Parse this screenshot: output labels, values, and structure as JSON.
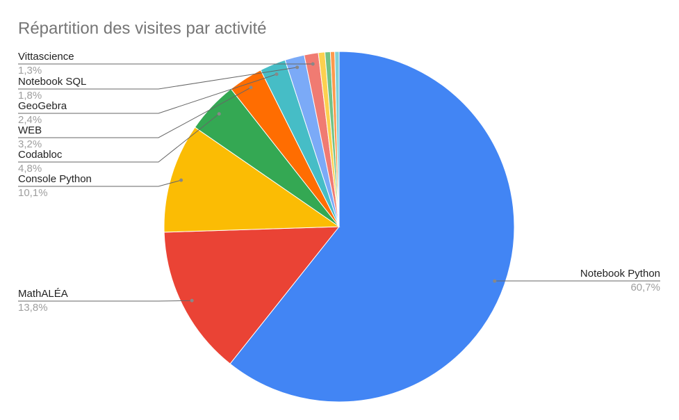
{
  "chart_data": {
    "type": "pie",
    "title": "Répartition des visites par activité",
    "categories": [
      "Notebook Python",
      "MathALÉA",
      "Console Python",
      "Codabloc",
      "WEB",
      "GeoGebra",
      "Notebook SQL",
      "Vittascience",
      null,
      null,
      null,
      null
    ],
    "values": [
      60.7,
      13.8,
      10.1,
      4.8,
      3.2,
      2.4,
      1.8,
      1.3,
      0.6,
      0.5,
      0.4,
      0.4
    ],
    "value_labels": [
      "60,7%",
      "13,8%",
      "10,1%",
      "4,8%",
      "3,2%",
      "2,4%",
      "1,8%",
      "1,3%",
      null,
      null,
      null,
      null
    ],
    "colors": [
      "#4285f4",
      "#ea4335",
      "#fbbc04",
      "#34a853",
      "#ff6d01",
      "#46bdc6",
      "#7baaf7",
      "#f07b72",
      "#fcd04f",
      "#71c287",
      "#ff994d",
      "#7ed1d7"
    ]
  }
}
